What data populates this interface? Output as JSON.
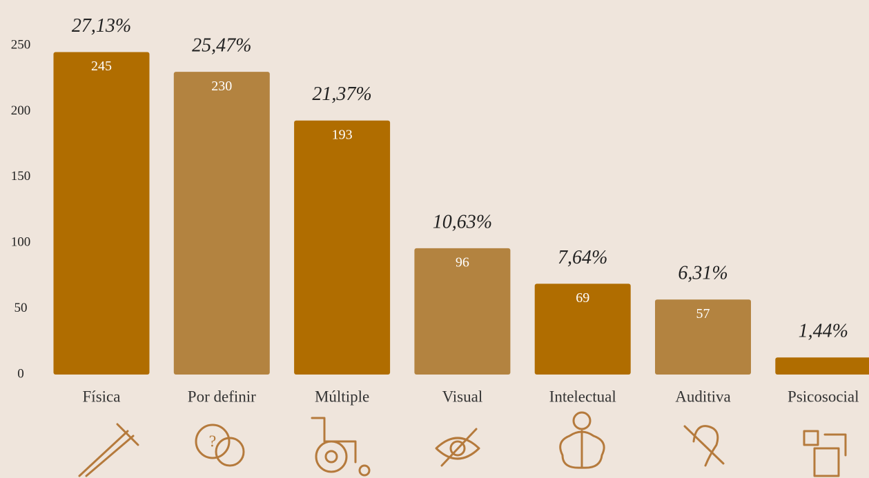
{
  "chart_data": {
    "type": "bar",
    "categories": [
      "Física",
      "Por definir",
      "Múltiple",
      "Visual",
      "Intelectual",
      "Auditiva",
      "Psicosocial"
    ],
    "values": [
      245,
      230,
      193,
      96,
      69,
      57,
      13
    ],
    "percent_labels": [
      "27,13%",
      "25,47%",
      "21,37%",
      "10,63%",
      "7,64%",
      "6,31%",
      "1,44%"
    ],
    "colors": [
      "#b06d00",
      "#b38340",
      "#b06d00",
      "#b38340",
      "#b06d00",
      "#b38340",
      "#b06d00"
    ],
    "ylim": [
      0,
      250
    ],
    "yticks": [
      0,
      50,
      100,
      150,
      200,
      250
    ],
    "grid": false
  }
}
